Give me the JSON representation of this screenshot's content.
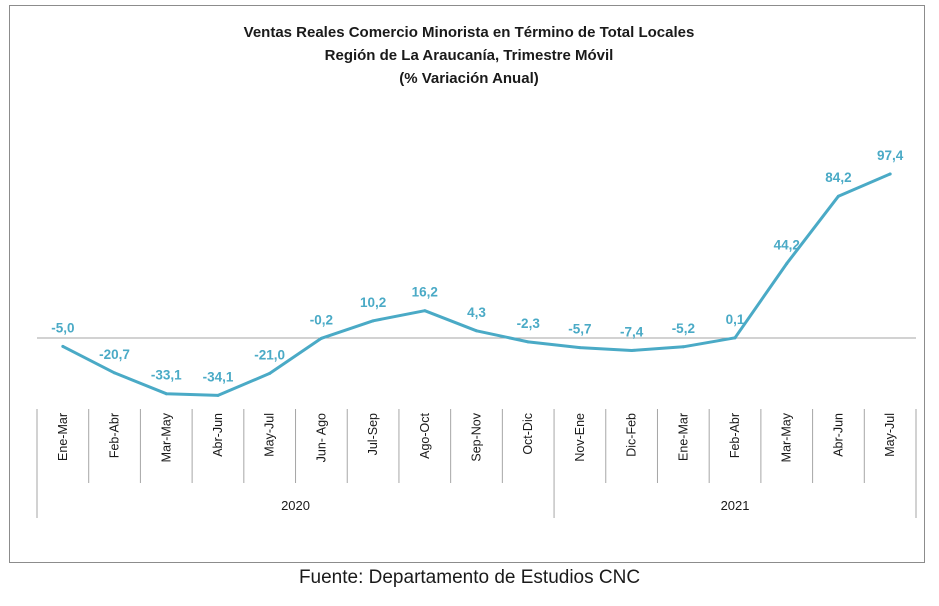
{
  "chart_data": {
    "type": "line",
    "title_lines": [
      "Ventas Reales Comercio Minorista  en Término de Total Locales",
      "Región de La Araucanía, Trimestre Móvil",
      "(% Variación Anual)"
    ],
    "categories": [
      "Ene-Mar",
      "Feb-Abr",
      "Mar-May",
      "Abr-Jun",
      "May-Jul",
      "Jun- Ago",
      "Jul-Sep",
      "Ago-Oct",
      "Sep-Nov",
      "Oct-Dic",
      "Nov-Ene",
      "Dic-Feb",
      "Ene-Mar",
      "Feb-Abr",
      "Mar-May",
      "Abr-Jun",
      "May-Jul"
    ],
    "values": [
      -5.0,
      -20.7,
      -33.1,
      -34.1,
      -21.0,
      -0.2,
      10.2,
      16.2,
      4.3,
      -2.3,
      -5.7,
      -7.4,
      -5.2,
      0.1,
      44.2,
      84.2,
      97.4
    ],
    "data_labels": [
      "-5,0",
      "-20,7",
      "-33,1",
      "-34,1",
      "-21,0",
      "-0,2",
      "10,2",
      "16,2",
      "4,3",
      "-2,3",
      "-5,7",
      "-7,4",
      "-5,2",
      "0,1",
      "44,2",
      "84,2",
      "97,4"
    ],
    "year_groups": [
      {
        "label": "2020",
        "start": 0,
        "end": 9
      },
      {
        "label": "2021",
        "start": 10,
        "end": 16
      }
    ],
    "ylim": [
      -50,
      120
    ],
    "grid": false,
    "legend": "none",
    "colors": {
      "line": "#4aaac6",
      "labels": "#4aaac6"
    }
  },
  "source": "Fuente: Departamento de Estudios CNC"
}
